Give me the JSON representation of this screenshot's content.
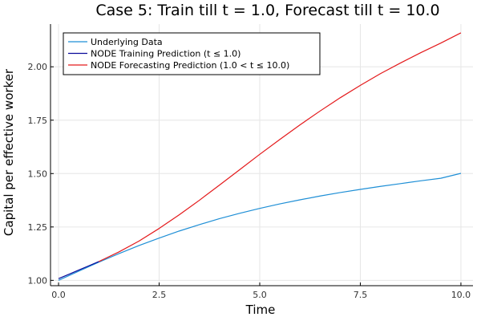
{
  "chart_data": {
    "type": "line",
    "title": "Case 5: Train till t = 1.0, Forecast till t = 10.0",
    "xlabel": "Time",
    "ylabel": "Capital per effective worker",
    "xlim": [
      -0.2,
      10.3
    ],
    "ylim": [
      0.975,
      2.2
    ],
    "xticks": [
      0.0,
      2.5,
      5.0,
      7.5,
      10.0
    ],
    "xtick_labels": [
      "0.0",
      "2.5",
      "5.0",
      "7.5",
      "10.0"
    ],
    "yticks": [
      1.0,
      1.25,
      1.5,
      1.75,
      2.0
    ],
    "ytick_labels": [
      "1.00",
      "1.25",
      "1.50",
      "1.75",
      "2.00"
    ],
    "grid": true,
    "legend_position": "top-left",
    "series": [
      {
        "name": "Underlying Data",
        "color": "#1f8fd6",
        "x": [
          0.0,
          0.5,
          1.0,
          1.5,
          2.0,
          2.5,
          3.0,
          3.5,
          4.0,
          4.5,
          5.0,
          5.5,
          6.0,
          6.5,
          7.0,
          7.5,
          8.0,
          8.5,
          9.0,
          9.5,
          10.0
        ],
        "y": [
          1.0,
          1.043,
          1.085,
          1.125,
          1.163,
          1.198,
          1.231,
          1.261,
          1.289,
          1.314,
          1.337,
          1.358,
          1.377,
          1.395,
          1.411,
          1.426,
          1.44,
          1.453,
          1.466,
          1.478,
          1.501
        ]
      },
      {
        "name": "NODE Training Prediction (t ≤ 1.0)",
        "color": "#0a0a9a",
        "x": [
          0.0,
          0.25,
          0.5,
          0.75,
          1.0
        ],
        "y": [
          1.008,
          1.028,
          1.048,
          1.068,
          1.088
        ]
      },
      {
        "name": "NODE Forecasting Prediction (1.0 < t ≤ 10.0)",
        "color": "#e41a1c",
        "x": [
          1.0,
          1.5,
          2.0,
          2.5,
          3.0,
          3.5,
          4.0,
          4.5,
          5.0,
          5.5,
          6.0,
          6.5,
          7.0,
          7.5,
          8.0,
          8.5,
          9.0,
          9.5,
          10.0
        ],
        "y": [
          1.088,
          1.133,
          1.184,
          1.243,
          1.307,
          1.375,
          1.446,
          1.518,
          1.59,
          1.66,
          1.728,
          1.793,
          1.855,
          1.913,
          1.968,
          2.018,
          2.066,
          2.111,
          2.159
        ]
      }
    ]
  }
}
